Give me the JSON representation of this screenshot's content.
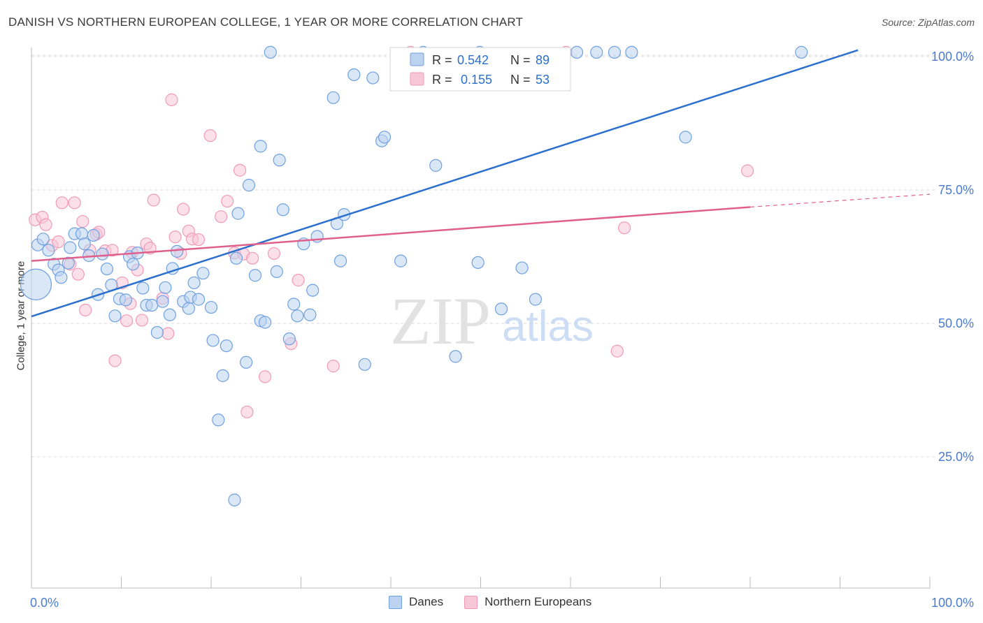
{
  "title": "DANISH VS NORTHERN EUROPEAN COLLEGE, 1 YEAR OR MORE CORRELATION CHART",
  "source": "Source: ZipAtlas.com",
  "watermark": {
    "zip": "ZIP",
    "atlas": "atlas"
  },
  "colors": {
    "blue": "#6fa0e0",
    "blue_line": "#2b6fcf",
    "pink": "#f09ab8",
    "pink_line": "#e0608c",
    "axis_text": "#4a7bd0"
  },
  "legend_top": {
    "rows": [
      {
        "r_label": "R =",
        "r_value": "0.542",
        "n_label": "N =",
        "n_value": "89"
      },
      {
        "r_label": "R =",
        "r_value": "0.155",
        "n_label": "N =",
        "n_value": "53"
      }
    ]
  },
  "legend_bottom": {
    "danes": "Danes",
    "northern": "Northern Europeans"
  },
  "chart_data": {
    "type": "scatter",
    "title": "DANISH VS NORTHERN EUROPEAN COLLEGE, 1 YEAR OR MORE CORRELATION CHART",
    "xlabel": "",
    "ylabel": "College, 1 year or more",
    "xlim": [
      0,
      100
    ],
    "ylim": [
      0,
      103
    ],
    "x_tick_labels": [
      "0.0%",
      "100.0%"
    ],
    "y_ticks": [
      25,
      50,
      75,
      100
    ],
    "y_tick_labels": [
      "25.0%",
      "50.0%",
      "75.0%",
      "100.0%"
    ],
    "grid": true,
    "legend_position": "top-center",
    "series": [
      {
        "name": "Danes",
        "r": 0.542,
        "n": 89,
        "trend": {
          "x0": 0,
          "y0": 51.3,
          "x1": 92,
          "y1": 101.2
        },
        "points": [
          [
            0.7,
            64.7
          ],
          [
            1.3,
            65.8
          ],
          [
            1.9,
            63.7
          ],
          [
            2.5,
            61.1
          ],
          [
            3.0,
            60.0
          ],
          [
            3.3,
            58.6
          ],
          [
            4.1,
            61.3
          ],
          [
            4.3,
            64.2
          ],
          [
            4.8,
            66.8
          ],
          [
            5.6,
            66.8
          ],
          [
            5.9,
            64.9
          ],
          [
            6.4,
            62.7
          ],
          [
            6.9,
            66.5
          ],
          [
            7.4,
            55.4
          ],
          [
            7.9,
            63.0
          ],
          [
            8.4,
            60.2
          ],
          [
            8.9,
            57.2
          ],
          [
            9.3,
            51.4
          ],
          [
            9.8,
            54.6
          ],
          [
            10.5,
            54.4
          ],
          [
            10.9,
            62.5
          ],
          [
            11.3,
            61.1
          ],
          [
            11.8,
            63.2
          ],
          [
            12.4,
            56.6
          ],
          [
            12.8,
            53.4
          ],
          [
            13.4,
            53.4
          ],
          [
            14.0,
            48.3
          ],
          [
            14.6,
            54.1
          ],
          [
            14.9,
            56.7
          ],
          [
            15.4,
            51.6
          ],
          [
            15.7,
            60.3
          ],
          [
            16.2,
            63.5
          ],
          [
            16.9,
            54.1
          ],
          [
            17.5,
            52.8
          ],
          [
            17.7,
            54.9
          ],
          [
            18.1,
            57.6
          ],
          [
            18.6,
            54.5
          ],
          [
            19.1,
            59.4
          ],
          [
            20.0,
            53.0
          ],
          [
            20.2,
            46.8
          ],
          [
            20.8,
            31.9
          ],
          [
            21.3,
            40.2
          ],
          [
            21.7,
            45.8
          ],
          [
            22.6,
            16.9
          ],
          [
            22.8,
            62.2
          ],
          [
            23.0,
            70.6
          ],
          [
            23.9,
            42.7
          ],
          [
            24.2,
            75.9
          ],
          [
            24.9,
            59.0
          ],
          [
            25.5,
            50.5
          ],
          [
            25.5,
            83.2
          ],
          [
            26.0,
            50.2
          ],
          [
            26.6,
            100.8
          ],
          [
            27.3,
            59.7
          ],
          [
            27.6,
            80.6
          ],
          [
            28.0,
            71.3
          ],
          [
            28.7,
            47.1
          ],
          [
            29.2,
            53.6
          ],
          [
            29.6,
            51.4
          ],
          [
            30.3,
            64.9
          ],
          [
            31.0,
            51.6
          ],
          [
            31.3,
            56.2
          ],
          [
            31.8,
            66.3
          ],
          [
            33.6,
            92.3
          ],
          [
            34.0,
            68.7
          ],
          [
            34.4,
            61.7
          ],
          [
            34.8,
            70.4
          ],
          [
            35.9,
            96.6
          ],
          [
            38.0,
            96.0
          ],
          [
            37.1,
            42.3
          ],
          [
            39.0,
            84.2
          ],
          [
            39.3,
            84.9
          ],
          [
            41.1,
            61.7
          ],
          [
            43.6,
            100.8
          ],
          [
            45.0,
            79.6
          ],
          [
            47.2,
            43.8
          ],
          [
            49.7,
            61.4
          ],
          [
            49.9,
            100.8
          ],
          [
            52.3,
            52.7
          ],
          [
            54.6,
            60.4
          ],
          [
            56.1,
            54.5
          ],
          [
            60.7,
            100.8
          ],
          [
            62.9,
            100.8
          ],
          [
            64.9,
            100.8
          ],
          [
            66.8,
            100.8
          ],
          [
            72.8,
            84.9
          ],
          [
            85.7,
            100.8
          ],
          [
            0.5,
            57.3
          ]
        ]
      },
      {
        "name": "Northern Europeans",
        "r": 0.155,
        "n": 53,
        "trend": {
          "x0": 0,
          "y0": 61.7,
          "x1": 80,
          "y1": 71.8
        },
        "trend_dashed": {
          "x0": 80,
          "y0": 71.8,
          "x1": 100,
          "y1": 74.2
        },
        "points": [
          [
            0.4,
            69.4
          ],
          [
            1.2,
            69.9
          ],
          [
            1.6,
            68.5
          ],
          [
            2.3,
            64.6
          ],
          [
            3.0,
            65.3
          ],
          [
            3.4,
            72.6
          ],
          [
            4.3,
            61.1
          ],
          [
            4.8,
            72.6
          ],
          [
            5.2,
            59.2
          ],
          [
            5.7,
            69.1
          ],
          [
            6.0,
            52.5
          ],
          [
            6.5,
            63.7
          ],
          [
            7.2,
            66.7
          ],
          [
            7.5,
            67.1
          ],
          [
            8.2,
            63.6
          ],
          [
            9.0,
            63.7
          ],
          [
            9.3,
            43.0
          ],
          [
            10.1,
            57.6
          ],
          [
            10.6,
            50.5
          ],
          [
            11.0,
            53.7
          ],
          [
            11.2,
            63.3
          ],
          [
            11.8,
            60.0
          ],
          [
            12.3,
            50.6
          ],
          [
            12.8,
            64.9
          ],
          [
            13.2,
            64.1
          ],
          [
            13.6,
            73.1
          ],
          [
            14.6,
            54.7
          ],
          [
            15.2,
            48.1
          ],
          [
            15.6,
            91.9
          ],
          [
            16.0,
            66.2
          ],
          [
            16.6,
            63.1
          ],
          [
            16.9,
            71.4
          ],
          [
            17.5,
            67.3
          ],
          [
            17.9,
            65.8
          ],
          [
            18.6,
            65.7
          ],
          [
            19.9,
            85.2
          ],
          [
            21.1,
            70.0
          ],
          [
            21.8,
            72.9
          ],
          [
            22.6,
            63.2
          ],
          [
            23.2,
            78.7
          ],
          [
            23.6,
            63.0
          ],
          [
            24.0,
            33.4
          ],
          [
            24.6,
            62.2
          ],
          [
            26.0,
            40.0
          ],
          [
            27.0,
            63.1
          ],
          [
            28.9,
            46.2
          ],
          [
            29.7,
            58.1
          ],
          [
            33.6,
            42.0
          ],
          [
            42.2,
            100.8
          ],
          [
            59.5,
            100.8
          ],
          [
            66.0,
            67.9
          ],
          [
            79.7,
            78.6
          ],
          [
            65.2,
            44.8
          ]
        ]
      }
    ]
  }
}
